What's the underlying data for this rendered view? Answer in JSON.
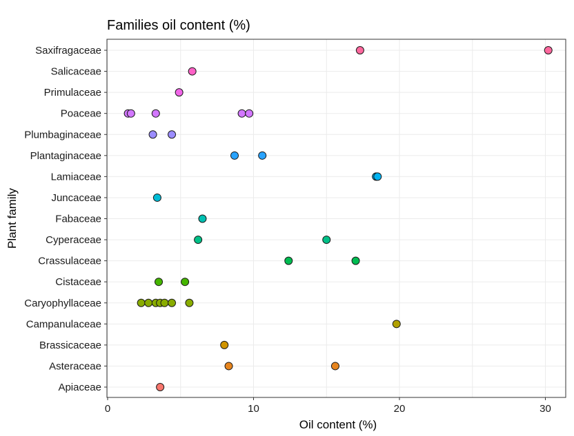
{
  "chart_data": {
    "type": "scatter",
    "title": "Families oil content (%)",
    "xlabel": "Oil content (%)",
    "ylabel": "Plant family",
    "xlim": [
      0,
      31.5
    ],
    "xticks": [
      0,
      10,
      20,
      30
    ],
    "grid": true,
    "categories": [
      "Apiaceae",
      "Asteraceae",
      "Brassicaceae",
      "Campanulaceae",
      "Caryophyllaceae",
      "Cistaceae",
      "Crassulaceae",
      "Cyperaceae",
      "Fabaceae",
      "Juncaceae",
      "Lamiaceae",
      "Plantaginaceae",
      "Plumbaginaceae",
      "Poaceae",
      "Primulaceae",
      "Salicaceae",
      "Saxifragaceae"
    ],
    "series": [
      {
        "category": "Apiaceae",
        "color": "#F8766D",
        "x": [
          3.6
        ]
      },
      {
        "category": "Asteraceae",
        "color": "#E7851E",
        "x": [
          8.3,
          15.6
        ]
      },
      {
        "category": "Brassicaceae",
        "color": "#D09400",
        "x": [
          8.0
        ]
      },
      {
        "category": "Campanulaceae",
        "color": "#B2A100",
        "x": [
          19.8
        ]
      },
      {
        "category": "Caryophyllaceae",
        "color": "#89AC00",
        "x": [
          2.3,
          2.8,
          3.3,
          3.6,
          3.9,
          4.4,
          5.6
        ]
      },
      {
        "category": "Cistaceae",
        "color": "#45B500",
        "x": [
          3.5,
          5.3
        ]
      },
      {
        "category": "Crassulaceae",
        "color": "#00BC51",
        "x": [
          12.4,
          17.0
        ]
      },
      {
        "category": "Cyperaceae",
        "color": "#00C087",
        "x": [
          6.2,
          15.0
        ]
      },
      {
        "category": "Fabaceae",
        "color": "#00C0B2",
        "x": [
          6.5
        ]
      },
      {
        "category": "Juncaceae",
        "color": "#00BCD6",
        "x": [
          3.4
        ]
      },
      {
        "category": "Lamiaceae",
        "color": "#00B3F2",
        "x": [
          18.4,
          18.5
        ]
      },
      {
        "category": "Plantaginaceae",
        "color": "#29A3FF",
        "x": [
          8.7,
          10.6
        ]
      },
      {
        "category": "Plumbaginaceae",
        "color": "#9C8DFF",
        "x": [
          3.1,
          4.4
        ]
      },
      {
        "category": "Poaceae",
        "color": "#D277FF",
        "x": [
          1.4,
          1.6,
          3.3,
          9.2,
          9.7
        ]
      },
      {
        "category": "Primulaceae",
        "color": "#F166E8",
        "x": [
          4.9
        ]
      },
      {
        "category": "Salicaceae",
        "color": "#FF61C7",
        "x": [
          5.8
        ]
      },
      {
        "category": "Saxifragaceae",
        "color": "#FF689E",
        "x": [
          17.3,
          30.2
        ]
      }
    ]
  }
}
